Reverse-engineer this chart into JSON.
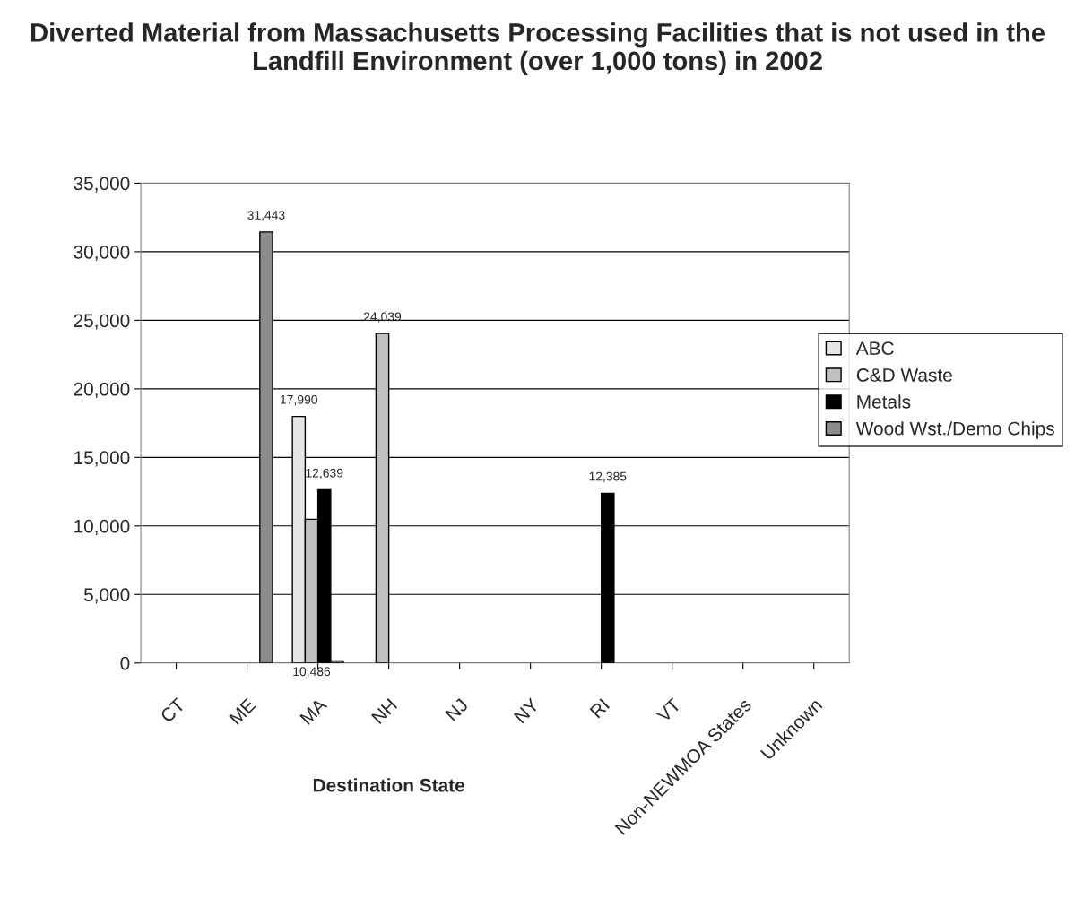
{
  "chart_data": {
    "type": "bar",
    "title": "Diverted Material from Massachusetts Processing Facilities that is not used in the Landfill Environment (over 1,000 tons) in 2002",
    "xlabel": "Destination State",
    "categories": [
      "CT",
      "ME",
      "MA",
      "NH",
      "NJ",
      "NY",
      "RI",
      "VT",
      "Non-NEWMOA States",
      "Unknown"
    ],
    "series": [
      {
        "name": "ABC",
        "color": "#e6e6e6",
        "values": [
          null,
          null,
          17990,
          null,
          null,
          null,
          null,
          null,
          null,
          null
        ],
        "value_labels": [
          null,
          null,
          "17,990",
          null,
          null,
          null,
          null,
          null,
          null,
          null
        ]
      },
      {
        "name": "C&D Waste",
        "color": "#c0c0c0",
        "values": [
          null,
          null,
          10486,
          24039,
          null,
          null,
          null,
          null,
          null,
          null
        ],
        "value_labels": [
          null,
          null,
          "10,486",
          "24,039",
          null,
          null,
          null,
          null,
          null,
          null
        ]
      },
      {
        "name": "Metals",
        "color": "#000000",
        "values": [
          null,
          null,
          12639,
          null,
          null,
          null,
          12385,
          null,
          null,
          null
        ],
        "value_labels": [
          null,
          null,
          "12,639",
          null,
          null,
          null,
          "12,385",
          null,
          null,
          null
        ]
      },
      {
        "name": "Wood Wst./Demo Chips",
        "color": "#8c8c8c",
        "values": [
          null,
          31443,
          150,
          null,
          null,
          null,
          null,
          null,
          null,
          null
        ],
        "value_labels": [
          null,
          "31,443",
          null,
          null,
          null,
          null,
          null,
          null,
          null,
          null
        ]
      }
    ],
    "ylim": [
      0,
      35000
    ],
    "yticks": [
      {
        "value": 0,
        "label": "0"
      },
      {
        "value": 5000,
        "label": "5,000"
      },
      {
        "value": 10000,
        "label": "10,000"
      },
      {
        "value": 15000,
        "label": "15,000"
      },
      {
        "value": 20000,
        "label": "20,000"
      },
      {
        "value": 25000,
        "label": "25,000"
      },
      {
        "value": 30000,
        "label": "30,000"
      },
      {
        "value": 35000,
        "label": "35,000"
      }
    ],
    "grid": "y",
    "legend": "right"
  }
}
